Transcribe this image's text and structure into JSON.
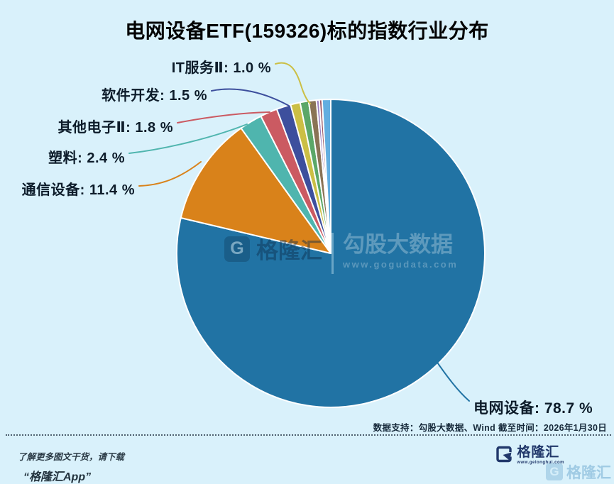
{
  "title": "电网设备ETF(159326)标的指数行业分布",
  "chart_data": {
    "type": "pie",
    "title": "电网设备ETF(159326)标的指数行业分布",
    "unit": "%",
    "label_format": "{name}: {value} %",
    "legend_position": "none",
    "slices": [
      {
        "name": "电网设备",
        "value": 78.7,
        "color": "#2173a4",
        "show_label": true
      },
      {
        "name": "通信设备",
        "value": 11.4,
        "color": "#d9821a",
        "show_label": true
      },
      {
        "name": "塑料",
        "value": 2.4,
        "color": "#4fb5ae",
        "show_label": true
      },
      {
        "name": "其他电子Ⅱ",
        "value": 1.8,
        "color": "#cb5a62",
        "show_label": true
      },
      {
        "name": "软件开发",
        "value": 1.5,
        "color": "#3d4f9d",
        "show_label": true
      },
      {
        "name": "IT服务Ⅱ",
        "value": 1.0,
        "color": "#cbbf45",
        "show_label": true
      },
      {
        "name": "",
        "value": 0.9,
        "color": "#5ba768",
        "show_label": false
      },
      {
        "name": "",
        "value": 0.8,
        "color": "#8a7355",
        "show_label": false
      },
      {
        "name": "",
        "value": 0.3,
        "color": "#9b7fc0",
        "show_label": false
      },
      {
        "name": "",
        "value": 0.3,
        "color": "#9c5a66",
        "show_label": false
      },
      {
        "name": "",
        "value": 0.9,
        "color": "#62aee0",
        "show_label": false
      }
    ]
  },
  "watermark": {
    "logo_letter": "G",
    "brand": "格隆汇",
    "product": "勾股大数据",
    "url": "www.gogudata.com"
  },
  "footer": {
    "data_support": "数据支持：勾股大数据、Wind  截至时间：2026年1月30日",
    "promo_line1": "了解更多图文干货，请下载",
    "promo_line2": "“格隆汇App”",
    "logo_letter": "G",
    "logo_text": "格隆汇",
    "logo_url": "www.gelonghui.com"
  },
  "colors": {
    "background": "#d9f1fb",
    "title_text": "#030303",
    "label_text": "#0d1c2a",
    "slice_border": "#ffffff"
  }
}
